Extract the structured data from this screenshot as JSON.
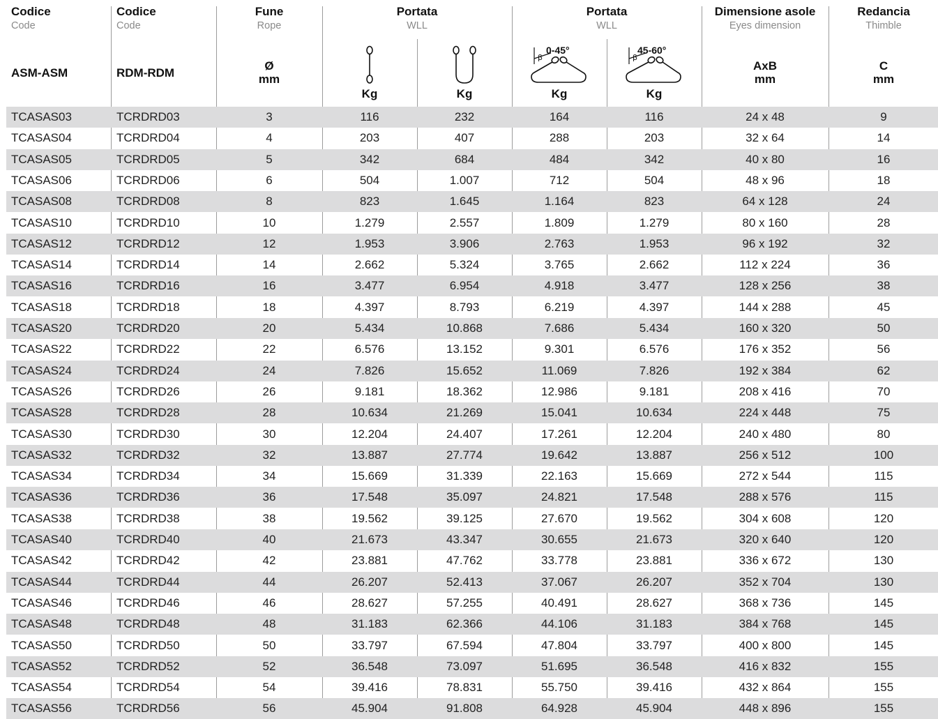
{
  "headers": {
    "code_asm": {
      "main": "Codice",
      "sub": "Code",
      "unit": "ASM-ASM"
    },
    "code_rdm": {
      "main": "Codice",
      "sub": "Code",
      "unit": "RDM-RDM"
    },
    "rope": {
      "main": "Fune",
      "sub": "Rope",
      "unit_1": "Ø",
      "unit_2": "mm"
    },
    "wll_a": {
      "main": "Portata",
      "sub": "WLL"
    },
    "wll_b": {
      "main": "Portata",
      "sub": "WLL"
    },
    "single_unit": "Kg",
    "choker_unit": "Kg",
    "angle1": {
      "label": "0-45°",
      "beta": "β",
      "unit": "Kg"
    },
    "angle2": {
      "label": "45-60°",
      "beta": "β",
      "unit": "Kg"
    },
    "eyes": {
      "main": "Dimensione asole",
      "sub": "Eyes dimension",
      "unit_1": "AxB",
      "unit_2": "mm"
    },
    "thimble": {
      "main": "Redancia",
      "sub": "Thimble",
      "unit_1": "C",
      "unit_2": "mm"
    }
  },
  "rows": [
    [
      "TCASAS03",
      "TCRDRD03",
      "3",
      "116",
      "232",
      "164",
      "116",
      "24 x 48",
      "9"
    ],
    [
      "TCASAS04",
      "TCRDRD04",
      "4",
      "203",
      "407",
      "288",
      "203",
      "32 x 64",
      "14"
    ],
    [
      "TCASAS05",
      "TCRDRD05",
      "5",
      "342",
      "684",
      "484",
      "342",
      "40 x 80",
      "16"
    ],
    [
      "TCASAS06",
      "TCRDRD06",
      "6",
      "504",
      "1.007",
      "712",
      "504",
      "48 x 96",
      "18"
    ],
    [
      "TCASAS08",
      "TCRDRD08",
      "8",
      "823",
      "1.645",
      "1.164",
      "823",
      "64 x 128",
      "24"
    ],
    [
      "TCASAS10",
      "TCRDRD10",
      "10",
      "1.279",
      "2.557",
      "1.809",
      "1.279",
      "80 x 160",
      "28"
    ],
    [
      "TCASAS12",
      "TCRDRD12",
      "12",
      "1.953",
      "3.906",
      "2.763",
      "1.953",
      "96 x 192",
      "32"
    ],
    [
      "TCASAS14",
      "TCRDRD14",
      "14",
      "2.662",
      "5.324",
      "3.765",
      "2.662",
      "112 x 224",
      "36"
    ],
    [
      "TCASAS16",
      "TCRDRD16",
      "16",
      "3.477",
      "6.954",
      "4.918",
      "3.477",
      "128 x 256",
      "38"
    ],
    [
      "TCASAS18",
      "TCRDRD18",
      "18",
      "4.397",
      "8.793",
      "6.219",
      "4.397",
      "144 x 288",
      "45"
    ],
    [
      "TCASAS20",
      "TCRDRD20",
      "20",
      "5.434",
      "10.868",
      "7.686",
      "5.434",
      "160 x 320",
      "50"
    ],
    [
      "TCASAS22",
      "TCRDRD22",
      "22",
      "6.576",
      "13.152",
      "9.301",
      "6.576",
      "176 x 352",
      "56"
    ],
    [
      "TCASAS24",
      "TCRDRD24",
      "24",
      "7.826",
      "15.652",
      "11.069",
      "7.826",
      "192 x 384",
      "62"
    ],
    [
      "TCASAS26",
      "TCRDRD26",
      "26",
      "9.181",
      "18.362",
      "12.986",
      "9.181",
      "208 x 416",
      "70"
    ],
    [
      "TCASAS28",
      "TCRDRD28",
      "28",
      "10.634",
      "21.269",
      "15.041",
      "10.634",
      "224 x 448",
      "75"
    ],
    [
      "TCASAS30",
      "TCRDRD30",
      "30",
      "12.204",
      "24.407",
      "17.261",
      "12.204",
      "240 x 480",
      "80"
    ],
    [
      "TCASAS32",
      "TCRDRD32",
      "32",
      "13.887",
      "27.774",
      "19.642",
      "13.887",
      "256 x 512",
      "100"
    ],
    [
      "TCASAS34",
      "TCRDRD34",
      "34",
      "15.669",
      "31.339",
      "22.163",
      "15.669",
      "272 x 544",
      "115"
    ],
    [
      "TCASAS36",
      "TCRDRD36",
      "36",
      "17.548",
      "35.097",
      "24.821",
      "17.548",
      "288 x 576",
      "115"
    ],
    [
      "TCASAS38",
      "TCRDRD38",
      "38",
      "19.562",
      "39.125",
      "27.670",
      "19.562",
      "304 x 608",
      "120"
    ],
    [
      "TCASAS40",
      "TCRDRD40",
      "40",
      "21.673",
      "43.347",
      "30.655",
      "21.673",
      "320 x 640",
      "120"
    ],
    [
      "TCASAS42",
      "TCRDRD42",
      "42",
      "23.881",
      "47.762",
      "33.778",
      "23.881",
      "336 x 672",
      "130"
    ],
    [
      "TCASAS44",
      "TCRDRD44",
      "44",
      "26.207",
      "52.413",
      "37.067",
      "26.207",
      "352 x 704",
      "130"
    ],
    [
      "TCASAS46",
      "TCRDRD46",
      "46",
      "28.627",
      "57.255",
      "40.491",
      "28.627",
      "368 x 736",
      "145"
    ],
    [
      "TCASAS48",
      "TCRDRD48",
      "48",
      "31.183",
      "62.366",
      "44.106",
      "31.183",
      "384 x 768",
      "145"
    ],
    [
      "TCASAS50",
      "TCRDRD50",
      "50",
      "33.797",
      "67.594",
      "47.804",
      "33.797",
      "400 x 800",
      "145"
    ],
    [
      "TCASAS52",
      "TCRDRD52",
      "52",
      "36.548",
      "73.097",
      "51.695",
      "36.548",
      "416 x 832",
      "155"
    ],
    [
      "TCASAS54",
      "TCRDRD54",
      "54",
      "39.416",
      "78.831",
      "55.750",
      "39.416",
      "432 x 864",
      "155"
    ],
    [
      "TCASAS56",
      "TCRDRD56",
      "56",
      "45.904",
      "91.808",
      "64.928",
      "45.904",
      "448 x 896",
      "155"
    ]
  ]
}
